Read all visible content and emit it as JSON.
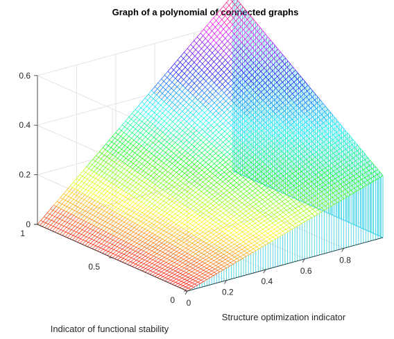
{
  "chart_data": {
    "type": "surface",
    "title": "Graph of a polynomial of connected graphs",
    "xlabel": "Structure optimization indicator",
    "ylabel": "Indicator of functional stability",
    "zlabel": "",
    "xlim": [
      0,
      1
    ],
    "ylim": [
      0,
      1
    ],
    "zlim": [
      0,
      0.6
    ],
    "x_ticks": [
      "0",
      "0.2",
      "0.4",
      "0.6",
      "0.8"
    ],
    "y_ticks": [
      "0",
      "0.5",
      "1"
    ],
    "z_ticks": [
      "0",
      "0.2",
      "0.4",
      "0.6"
    ],
    "grid": true,
    "colormap": "hsv",
    "surface_points": [
      {
        "x": 0,
        "y": 0,
        "z": 0
      },
      {
        "x": 1,
        "y": 0,
        "z": 0.25
      },
      {
        "x": 0,
        "y": 1,
        "z": 0
      },
      {
        "x": 1,
        "y": 1,
        "z": 0.71
      }
    ],
    "color_stops": [
      "#ff0000",
      "#ffff00",
      "#00ff00",
      "#00ffff",
      "#0000ff",
      "#ff00ff",
      "#ff0000"
    ],
    "colors": {
      "mesh_side": "#2fd0e6",
      "axis": "#262626",
      "grid": "#e3e3e3"
    }
  }
}
